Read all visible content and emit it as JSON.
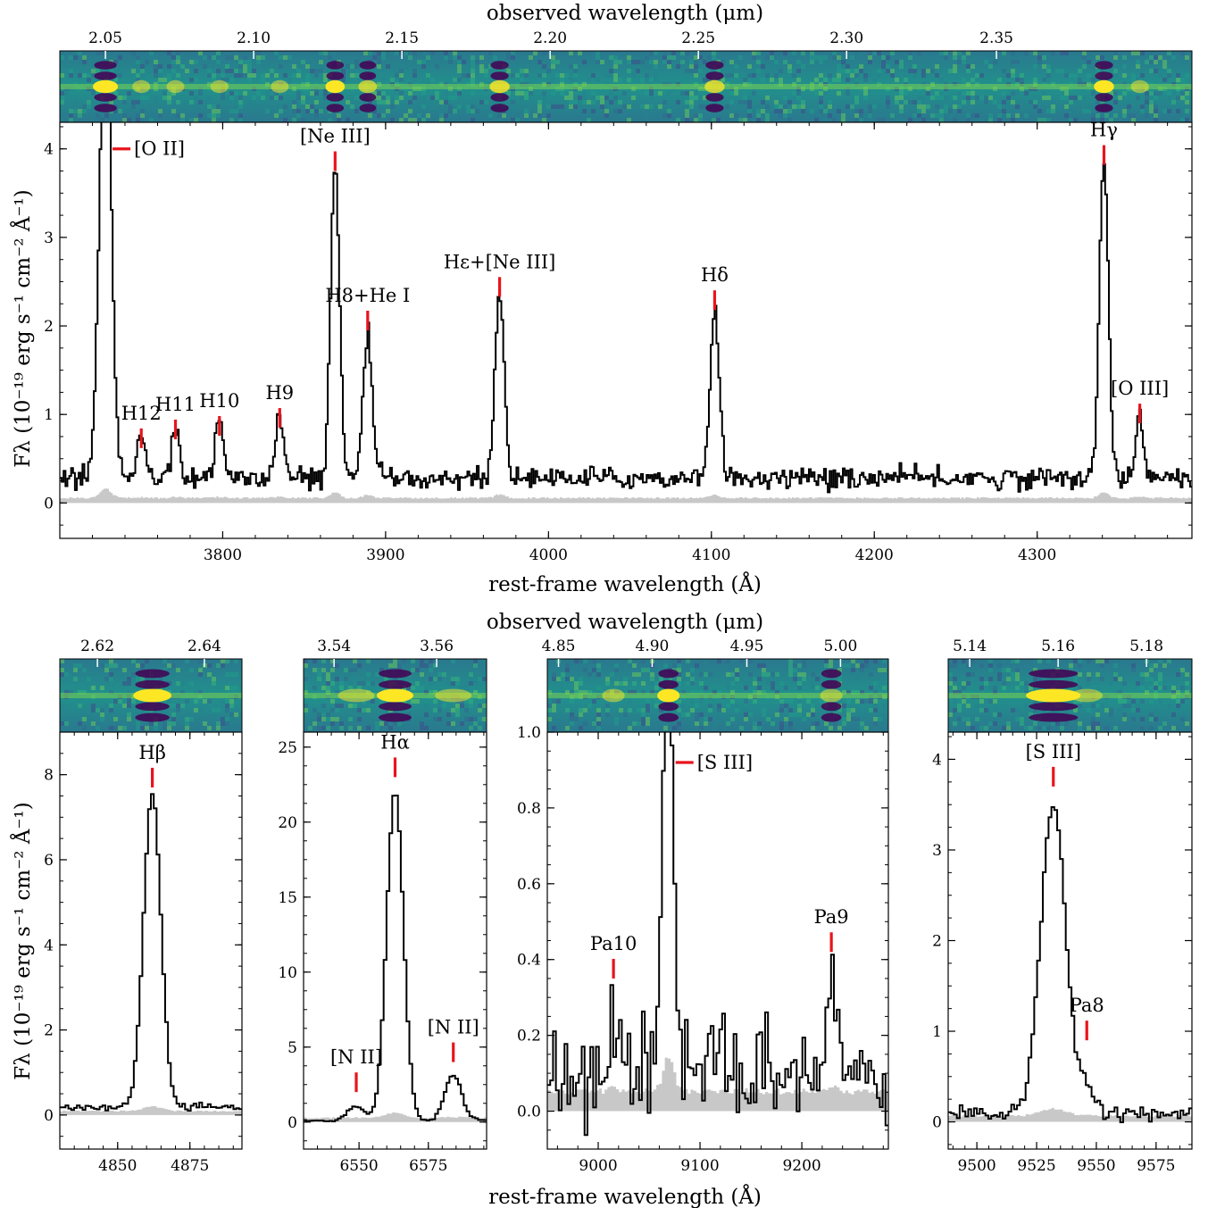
{
  "figure": {
    "top_observed_label": "observed wavelength (μm)",
    "top_rest_label": "rest-frame wavelength (Å)",
    "bottom_observed_label": "observed wavelength (μm)",
    "bottom_rest_label": "rest-frame wavelength (Å)",
    "ylabel_top": "Fλ (10⁻¹⁹ erg s⁻¹ cm⁻² Å⁻¹)",
    "ylabel_bottom": "Fλ (10⁻¹⁹ erg s⁻¹ cm⁻² Å⁻¹)"
  },
  "chart_data": [
    {
      "type": "line",
      "panel": "main",
      "xlim": [
        3700,
        4395
      ],
      "ylim": [
        -0.4,
        4.3
      ],
      "xticks": [
        3800,
        3900,
        4000,
        4100,
        4200,
        4300
      ],
      "yticks": [
        0,
        1,
        2,
        3,
        4
      ],
      "obs_ticks": [
        "2.05",
        "2.10",
        "2.15",
        "2.20",
        "2.25",
        "2.30",
        "2.35"
      ],
      "obs_tick_rest": [
        3728,
        3819,
        3910,
        4001,
        4092,
        4183,
        4275
      ],
      "continuum": 0.28,
      "noise": 0.06,
      "error_level": 0.06,
      "lines": [
        {
          "label": "[O II]",
          "x": 3728,
          "peak": 5.6,
          "sigma": 3.5,
          "marker_y": 4.0,
          "marker_side": "right"
        },
        {
          "label": "H12",
          "x": 3750,
          "peak": 0.5,
          "sigma": 2.5,
          "marker_y": 0.62
        },
        {
          "label": "H11",
          "x": 3771,
          "peak": 0.6,
          "sigma": 2.5,
          "marker_y": 0.72
        },
        {
          "label": "H10",
          "x": 3798,
          "peak": 0.64,
          "sigma": 2.5,
          "marker_y": 0.76
        },
        {
          "label": "H9",
          "x": 3835,
          "peak": 0.7,
          "sigma": 2.5,
          "marker_y": 0.85
        },
        {
          "label": "[Ne III]",
          "x": 3869,
          "peak": 3.5,
          "sigma": 2.7,
          "marker_y": 3.75
        },
        {
          "label": "H8+He I",
          "x": 3889,
          "peak": 1.68,
          "sigma": 2.6,
          "marker_y": 1.95
        },
        {
          "label": "Hε+[Ne III]",
          "x": 3970,
          "peak": 2.08,
          "sigma": 2.8,
          "marker_y": 2.33
        },
        {
          "label": "Hδ",
          "x": 4102,
          "peak": 1.93,
          "sigma": 2.8,
          "marker_y": 2.18
        },
        {
          "label": "Hγ",
          "x": 4341,
          "peak": 3.6,
          "sigma": 2.8,
          "marker_y": 3.82
        },
        {
          "label": "[O III]",
          "x": 4363,
          "peak": 0.65,
          "sigma": 2.5,
          "marker_y": 0.9
        }
      ]
    },
    {
      "type": "line",
      "panel": "hbeta",
      "xlim": [
        4830,
        4893
      ],
      "ylim": [
        -0.8,
        9.0
      ],
      "xticks": [
        4850,
        4875
      ],
      "yticks": [
        0,
        2,
        4,
        6,
        8
      ],
      "obs_ticks": [
        "2.62",
        "2.64"
      ],
      "obs_tick_rest": [
        4843,
        4880
      ],
      "continuum": 0.18,
      "noise": 0.03,
      "error_level": 0.1,
      "lines": [
        {
          "label": "Hβ",
          "x": 4862,
          "peak": 7.4,
          "sigma": 3.0,
          "marker_y": 7.7
        }
      ]
    },
    {
      "type": "line",
      "panel": "halpha",
      "xlim": [
        6530,
        6596
      ],
      "ylim": [
        -1.8,
        26.0
      ],
      "xticks": [
        6550,
        6575
      ],
      "yticks": [
        0,
        5,
        10,
        15,
        20,
        25
      ],
      "obs_ticks": [
        "3.54",
        "3.56"
      ],
      "obs_tick_rest": [
        6541,
        6578
      ],
      "continuum": 0.1,
      "noise": 0.05,
      "error_level": 0.3,
      "lines": [
        {
          "label": "[N II]",
          "x": 6549,
          "peak": 1.0,
          "sigma": 3.0,
          "marker_y": 2.0
        },
        {
          "label": "Hα",
          "x": 6563,
          "peak": 22.0,
          "sigma": 3.0,
          "marker_y": 23.0
        },
        {
          "label": "[N II]",
          "x": 6584,
          "peak": 3.0,
          "sigma": 3.0,
          "marker_y": 4.0
        }
      ]
    },
    {
      "type": "line",
      "panel": "siii_9069",
      "xlim": [
        8950,
        9285
      ],
      "ylim": [
        -0.1,
        1.0
      ],
      "xticks": [
        9000,
        9100,
        9200
      ],
      "yticks": [
        0.0,
        0.2,
        0.4,
        0.6,
        0.8,
        1.0
      ],
      "obs_ticks": [
        "4.85",
        "4.90",
        "4.95",
        "5.00"
      ],
      "obs_tick_rest": [
        8961,
        9053,
        9146,
        9238
      ],
      "continuum": 0.1,
      "noise": 0.06,
      "error_level": 0.055,
      "lines": [
        {
          "label": "Pa10",
          "x": 9015,
          "peak": 0.16,
          "sigma": 5.0,
          "marker_y": 0.35
        },
        {
          "label": "[S III]",
          "x": 9069,
          "peak": 1.25,
          "sigma": 5.0,
          "marker_y": 0.92,
          "marker_side": "right"
        },
        {
          "label": "Pa9",
          "x": 9229,
          "peak": 0.23,
          "sigma": 5.0,
          "marker_y": 0.42
        }
      ]
    },
    {
      "type": "line",
      "panel": "siii_9531",
      "xlim": [
        9488,
        9590
      ],
      "ylim": [
        -0.3,
        4.3
      ],
      "xticks": [
        9500,
        9525,
        9550,
        9575
      ],
      "yticks": [
        0,
        1,
        2,
        3,
        4
      ],
      "obs_ticks": [
        "5.14",
        "5.16",
        "5.18"
      ],
      "obs_tick_rest": [
        9497,
        9534,
        9571
      ],
      "continuum": 0.08,
      "noise": 0.04,
      "error_level": 0.07,
      "lines": [
        {
          "label": "[S III]",
          "x": 9532,
          "peak": 3.45,
          "sigma": 5.2,
          "marker_y": 3.7
        },
        {
          "label": "Pa8",
          "x": 9546,
          "peak": 0.3,
          "sigma": 3.0,
          "marker_y": 0.9
        }
      ]
    }
  ]
}
